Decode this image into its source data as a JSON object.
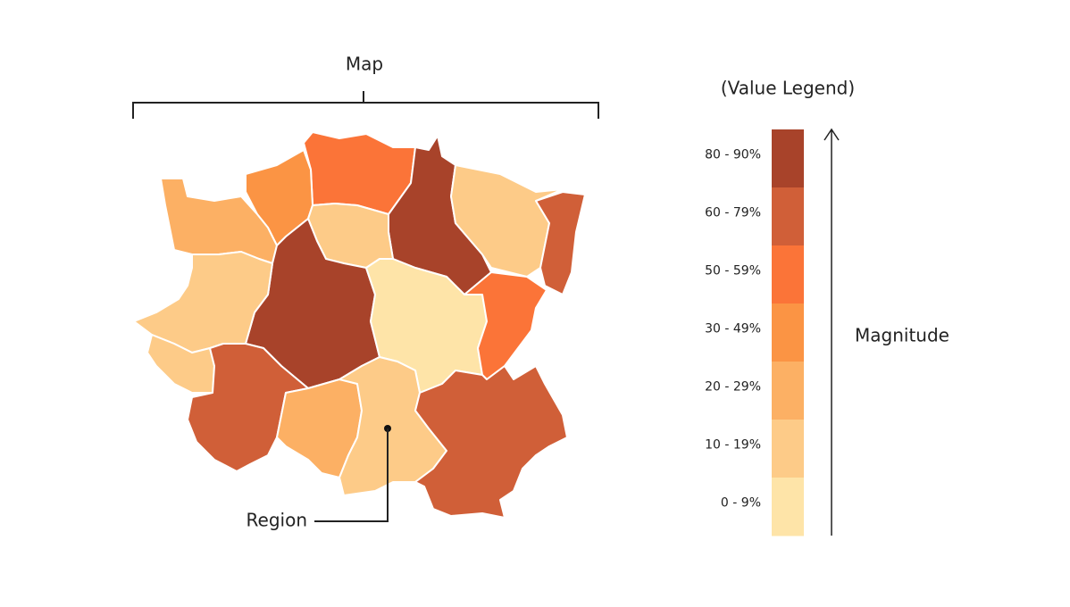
{
  "title": "Map",
  "legend": {
    "title": "(Value Legend)",
    "axis_label": "Magnitude",
    "bins": [
      {
        "label": "80 - 90%",
        "color": "#a8432a"
      },
      {
        "label": "60 - 79%",
        "color": "#d05f38"
      },
      {
        "label": "50 - 59%",
        "color": "#fb7438"
      },
      {
        "label": "30 - 49%",
        "color": "#fb9444"
      },
      {
        "label": "20 - 29%",
        "color": "#fcb064"
      },
      {
        "label": "10 - 19%",
        "color": "#fdcb88"
      },
      {
        "label": "0 - 9%",
        "color": "#fee4a8"
      }
    ]
  },
  "callout": "Region"
}
